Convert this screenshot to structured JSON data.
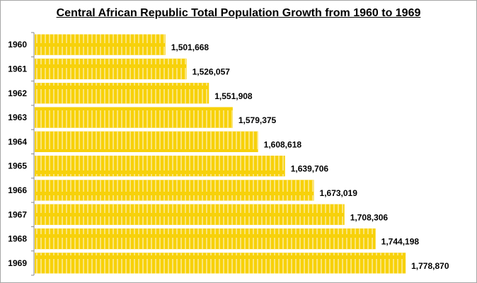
{
  "chart_data": {
    "type": "bar",
    "orientation": "horizontal",
    "title": "Central African Republic Total Population Growth from 1960 to 1969",
    "categories": [
      "1960",
      "1961",
      "1962",
      "1963",
      "1964",
      "1965",
      "1966",
      "1967",
      "1968",
      "1969"
    ],
    "values": [
      1501668,
      1526057,
      1551908,
      1579375,
      1608618,
      1639706,
      1673019,
      1708306,
      1744198,
      1778870
    ],
    "data_labels": [
      "1,501,668",
      "1,526,057",
      "1,551,908",
      "1,579,375",
      "1,608,618",
      "1,639,706",
      "1,673,019",
      "1,708,306",
      "1,744,198",
      "1,778,870"
    ],
    "xlim": [
      1350000,
      1800000
    ],
    "xlabel": "",
    "ylabel": "",
    "grid": false,
    "bar_color": "#F7D10A",
    "bar_pattern_color": "#FBE57A"
  }
}
